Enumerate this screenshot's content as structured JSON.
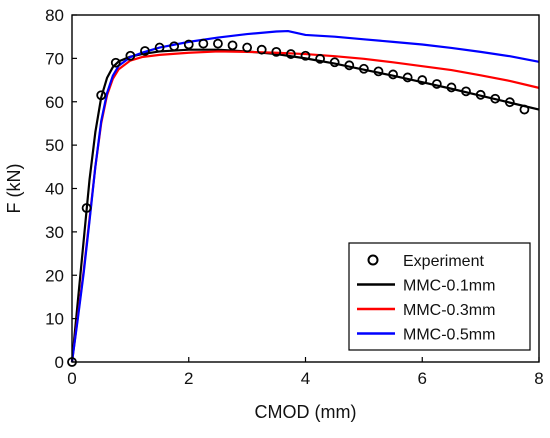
{
  "chart_data": {
    "type": "line",
    "xlabel": "CMOD (mm)",
    "ylabel": "F (kN)",
    "xlim": [
      0,
      8
    ],
    "ylim": [
      0,
      80
    ],
    "x_ticks": [
      0,
      2,
      4,
      6,
      8
    ],
    "y_ticks": [
      0,
      10,
      20,
      30,
      40,
      50,
      60,
      70,
      80
    ],
    "grid": false,
    "legend_position": "bottom-right",
    "series": [
      {
        "name": "Experiment",
        "style": "markers",
        "marker": "open-circle",
        "color": "#000000",
        "x": [
          0.0,
          0.25,
          0.5,
          0.75,
          1.0,
          1.25,
          1.5,
          1.75,
          2.0,
          2.25,
          2.5,
          2.75,
          3.0,
          3.25,
          3.5,
          3.75,
          4.0,
          4.25,
          4.5,
          4.75,
          5.0,
          5.25,
          5.5,
          5.75,
          6.0,
          6.25,
          6.5,
          6.75,
          7.0,
          7.25,
          7.5,
          7.75
        ],
        "y": [
          0.0,
          35.5,
          61.5,
          69.0,
          70.6,
          71.7,
          72.5,
          72.8,
          73.2,
          73.4,
          73.4,
          73.0,
          72.5,
          72.0,
          71.5,
          71.0,
          70.6,
          69.9,
          69.1,
          68.4,
          67.6,
          67.0,
          66.3,
          65.6,
          65.0,
          64.1,
          63.3,
          62.4,
          61.6,
          60.7,
          59.9,
          58.2
        ]
      },
      {
        "name": "MMC-0.1mm",
        "style": "line",
        "color": "#000000",
        "x": [
          0.0,
          0.1,
          0.2,
          0.3,
          0.4,
          0.5,
          0.6,
          0.7,
          0.8,
          1.0,
          1.2,
          1.5,
          2.0,
          2.5,
          3.0,
          3.5,
          4.0,
          4.5,
          5.0,
          5.5,
          6.0,
          6.5,
          7.0,
          7.5,
          8.0
        ],
        "y": [
          0.0,
          14.0,
          28.0,
          42.0,
          53.0,
          61.0,
          65.5,
          68.0,
          69.3,
          70.4,
          71.0,
          71.6,
          72.0,
          72.0,
          71.6,
          71.0,
          70.0,
          68.8,
          67.4,
          66.0,
          64.5,
          63.0,
          61.4,
          59.8,
          58.2
        ]
      },
      {
        "name": "MMC-0.3mm",
        "style": "line",
        "color": "#ff0000",
        "x": [
          0.0,
          0.1,
          0.2,
          0.3,
          0.4,
          0.5,
          0.6,
          0.7,
          0.8,
          1.0,
          1.2,
          1.5,
          2.0,
          2.5,
          3.0,
          3.5,
          4.0,
          4.5,
          5.0,
          5.5,
          6.0,
          6.5,
          7.0,
          7.5,
          8.0
        ],
        "y": [
          0.0,
          10.5,
          21.0,
          33.0,
          45.0,
          55.0,
          61.5,
          65.3,
          67.5,
          69.5,
          70.3,
          70.8,
          71.3,
          71.6,
          71.5,
          71.3,
          71.0,
          70.5,
          69.9,
          69.1,
          68.2,
          67.3,
          66.1,
          64.8,
          63.2
        ]
      },
      {
        "name": "MMC-0.5mm",
        "style": "line",
        "color": "#0000ff",
        "x": [
          0.0,
          0.1,
          0.2,
          0.3,
          0.4,
          0.5,
          0.6,
          0.7,
          0.8,
          1.0,
          1.2,
          1.5,
          2.0,
          2.5,
          3.0,
          3.5,
          3.7,
          4.0,
          4.5,
          5.0,
          5.5,
          6.0,
          6.5,
          7.0,
          7.5,
          8.0
        ],
        "y": [
          0.0,
          10.0,
          20.5,
          32.5,
          45.0,
          55.5,
          62.0,
          66.0,
          68.3,
          70.3,
          71.3,
          72.5,
          73.8,
          74.8,
          75.6,
          76.2,
          76.3,
          75.4,
          75.0,
          74.4,
          73.8,
          73.2,
          72.4,
          71.5,
          70.5,
          69.2
        ]
      }
    ]
  }
}
